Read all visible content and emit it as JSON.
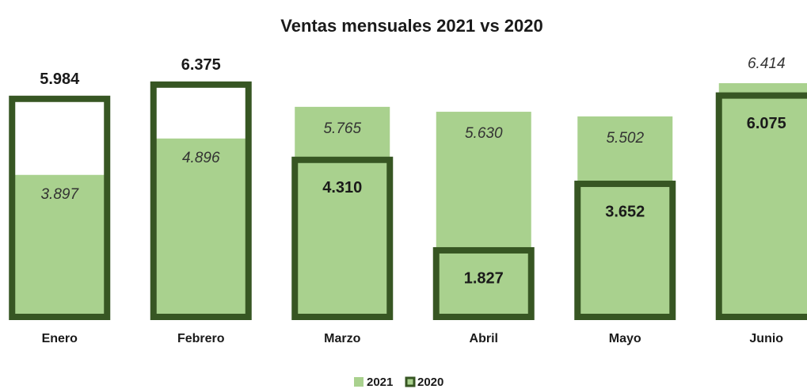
{
  "chart_data": {
    "type": "bar-overlap",
    "title": "Ventas mensuales 2021 vs 2020",
    "categories": [
      "Enero",
      "Febrero",
      "Marzo",
      "Abril",
      "Mayo",
      "Junio"
    ],
    "series": [
      {
        "name": "2021",
        "color": "#a9d18e",
        "values": [
          3897,
          4896,
          5765,
          5630,
          5502,
          6414
        ],
        "value_labels": [
          "3.897",
          "4.896",
          "5.765",
          "5.630",
          "5.502",
          "6.414"
        ]
      },
      {
        "name": "2020",
        "color": "#375623",
        "values": [
          5984,
          6375,
          4310,
          1827,
          3652,
          6075
        ],
        "value_labels": [
          "5.984",
          "6.375",
          "4.310",
          "1.827",
          "3.652",
          "6.075"
        ]
      }
    ]
  }
}
